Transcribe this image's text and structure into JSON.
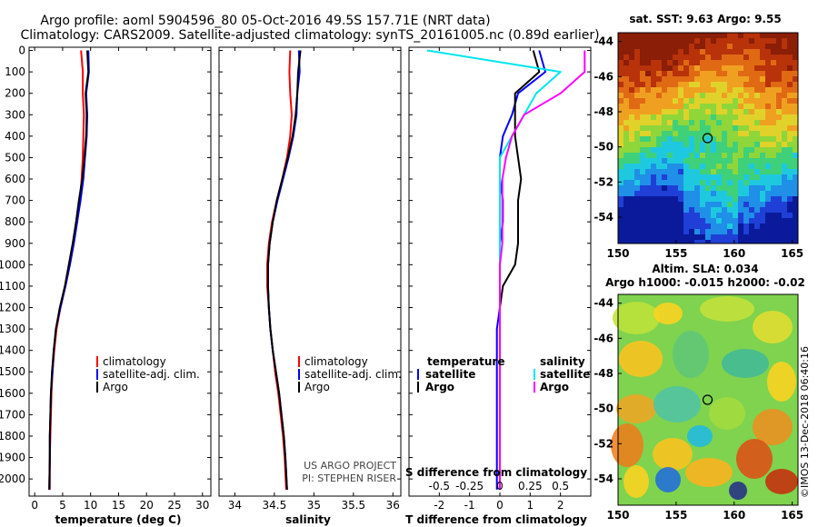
{
  "header": {
    "line1": "Argo profile: aoml 5904596_80 05-Oct-2016 49.5S 157.71E (NRT data)",
    "line2": "Climatology: CARS2009. Satellite-adjusted climatology: synTS_20161005.nc (0.89d earlier)"
  },
  "colors": {
    "climatology": "#ff0000",
    "satellite": "#0000ff",
    "argo": "#000000",
    "sat_salinity": "#00e5ee",
    "clim_salinity": "#ff00ff"
  },
  "depth_ticks": [
    "0",
    "100",
    "200",
    "300",
    "400",
    "500",
    "600",
    "700",
    "800",
    "900",
    "1000",
    "1100",
    "1200",
    "1300",
    "1400",
    "1500",
    "1600",
    "1700",
    "1800",
    "1900",
    "2000"
  ],
  "chart_data": [
    {
      "type": "line",
      "name": "temperature-panel",
      "xlabel": "temperature (deg C)",
      "xlim": [
        -1,
        31.5
      ],
      "ylim": [
        2080,
        -15
      ],
      "xticks": [
        0,
        5,
        10,
        15,
        20,
        25,
        30
      ],
      "xtick_labels": [
        "0",
        "5",
        "10",
        "15",
        "20",
        "25",
        "30"
      ],
      "legend": [
        "climatology",
        "satellite-adj. clim.",
        "Argo"
      ],
      "series": [
        {
          "name": "climatology",
          "color": "#ff0000",
          "x": [
            8.3,
            8.6,
            8.6,
            8.8,
            8.7,
            8.6,
            8.4,
            8.1,
            7.6,
            7.0,
            6.3,
            5.5,
            4.6,
            3.9,
            3.5,
            3.2,
            3.0,
            2.9,
            2.8,
            2.7,
            2.7
          ],
          "y": [
            0,
            100,
            200,
            300,
            400,
            500,
            600,
            700,
            800,
            900,
            1000,
            1100,
            1200,
            1300,
            1400,
            1500,
            1600,
            1700,
            1800,
            1900,
            2050
          ]
        },
        {
          "name": "satellite-adj. clim.",
          "color": "#0000ff",
          "x": [
            9.6,
            9.7,
            9.2,
            9.4,
            9.3,
            9.0,
            8.7,
            8.2,
            7.6,
            7.0,
            6.3,
            5.5,
            4.6,
            3.8,
            3.4,
            3.2,
            2.9,
            2.8,
            2.7,
            2.7,
            2.6
          ],
          "y": [
            0,
            100,
            200,
            300,
            400,
            500,
            600,
            700,
            800,
            900,
            1000,
            1100,
            1200,
            1300,
            1400,
            1500,
            1600,
            1700,
            1800,
            1900,
            2050
          ]
        },
        {
          "name": "Argo",
          "color": "#000000",
          "x": [
            9.4,
            9.6,
            9.1,
            9.3,
            9.2,
            8.9,
            8.5,
            7.9,
            7.4,
            6.8,
            6.1,
            5.4,
            4.5,
            3.8,
            3.4,
            3.1,
            2.9,
            2.8,
            2.7,
            2.7,
            2.6
          ],
          "y": [
            0,
            100,
            200,
            300,
            400,
            500,
            600,
            700,
            800,
            900,
            1000,
            1100,
            1200,
            1300,
            1400,
            1500,
            1600,
            1700,
            1800,
            1900,
            2050
          ]
        }
      ]
    },
    {
      "type": "line",
      "name": "salinity-panel",
      "xlabel": "salinity",
      "xlim": [
        33.8,
        36.1
      ],
      "ylim": [
        2080,
        -15
      ],
      "xticks": [
        34,
        34.5,
        35,
        35.5,
        36
      ],
      "xtick_labels": [
        "34",
        "34.5",
        "35",
        "35.5",
        "36"
      ],
      "legend": [
        "climatology",
        "satellite-adj. clim.",
        "Argo"
      ],
      "notes": [
        "US ARGO PROJECT",
        "PI: STEPHEN RISER"
      ],
      "series": [
        {
          "name": "climatology",
          "color": "#ff0000",
          "x": [
            34.7,
            34.69,
            34.7,
            34.72,
            34.7,
            34.66,
            34.6,
            34.53,
            34.47,
            34.43,
            34.41,
            34.41,
            34.43,
            34.45,
            34.48,
            34.51,
            34.55,
            34.58,
            34.61,
            34.63,
            34.65
          ],
          "y": [
            0,
            100,
            200,
            300,
            400,
            500,
            600,
            700,
            800,
            900,
            1000,
            1100,
            1200,
            1300,
            1400,
            1500,
            1600,
            1700,
            1800,
            1900,
            2050
          ]
        },
        {
          "name": "satellite-adj. clim.",
          "color": "#0000ff",
          "x": [
            34.81,
            34.82,
            34.79,
            34.78,
            34.74,
            34.68,
            34.61,
            34.54,
            34.48,
            34.44,
            34.42,
            34.42,
            34.43,
            34.45,
            34.48,
            34.52,
            34.56,
            34.59,
            34.62,
            34.64,
            34.66
          ],
          "y": [
            0,
            100,
            200,
            300,
            400,
            500,
            600,
            700,
            800,
            900,
            1000,
            1100,
            1200,
            1300,
            1400,
            1500,
            1600,
            1700,
            1800,
            1900,
            2050
          ]
        },
        {
          "name": "Argo",
          "color": "#000000",
          "x": [
            34.83,
            34.8,
            34.79,
            34.77,
            34.73,
            34.67,
            34.6,
            34.53,
            34.48,
            34.44,
            34.42,
            34.42,
            34.43,
            34.45,
            34.48,
            34.52,
            34.56,
            34.59,
            34.62,
            34.64,
            34.66
          ],
          "y": [
            0,
            100,
            200,
            300,
            400,
            500,
            600,
            700,
            800,
            900,
            1000,
            1100,
            1200,
            1300,
            1400,
            1500,
            1600,
            1700,
            1800,
            1900,
            2050
          ]
        }
      ]
    },
    {
      "type": "line",
      "name": "difference-panel",
      "xlabel": "T difference from climatology",
      "xlabel_top": "S difference from climatology",
      "xlim": [
        -3,
        3
      ],
      "ylim": [
        2080,
        -15
      ],
      "xticks": [
        -2,
        -1,
        0,
        1,
        2
      ],
      "xtick_labels": [
        "-2",
        "-1",
        "0",
        "1",
        "2"
      ],
      "s_axis_scale": 4,
      "s_ticks": [
        -0.5,
        -0.25,
        0,
        0.25,
        0.5
      ],
      "s_tick_labels": [
        "-0.5",
        "-0.25",
        "0",
        "0.25",
        "0.5"
      ],
      "legend_temperature": {
        "title": "temperature",
        "items": [
          "satellite",
          "Argo"
        ]
      },
      "legend_salinity": {
        "title": "salinity",
        "items": [
          "satellite",
          "Argo"
        ]
      },
      "series": [
        {
          "name": "T satellite",
          "color": "#0000ff",
          "x": [
            1.3,
            1.5,
            0.6,
            0.4,
            0.1,
            0.0,
            0.0,
            0.1,
            0.1,
            0.0,
            0.0,
            0.0,
            0.0,
            -0.1,
            -0.1,
            -0.1,
            -0.1,
            -0.1,
            -0.1,
            -0.1,
            -0.1
          ],
          "y": [
            0,
            100,
            200,
            300,
            400,
            500,
            600,
            700,
            800,
            900,
            1000,
            1100,
            1200,
            1300,
            1400,
            1500,
            1600,
            1700,
            1800,
            1900,
            2050
          ]
        },
        {
          "name": "T Argo",
          "color": "#000000",
          "x": [
            1.1,
            1.3,
            0.5,
            0.5,
            0.5,
            0.6,
            0.7,
            0.6,
            0.6,
            0.6,
            0.5,
            0.1,
            0.0,
            0.0,
            0.0,
            0.0,
            0.0,
            0.0,
            0.0,
            0.0,
            0.0
          ],
          "y": [
            0,
            100,
            200,
            300,
            400,
            500,
            600,
            700,
            800,
            900,
            1000,
            1100,
            1200,
            1300,
            1400,
            1500,
            1600,
            1700,
            1800,
            1900,
            2050
          ]
        },
        {
          "name": "S satellite",
          "color": "#00e5ee",
          "x": [
            -0.6,
            0.5,
            0.3,
            0.2,
            0.1,
            0.0,
            0.0,
            0.0,
            0.0,
            0.0,
            0.0,
            0.0,
            0.0,
            0.0,
            0.0,
            0.0,
            0.0,
            0.0,
            0.0,
            0.0,
            0.0
          ],
          "y": [
            0,
            100,
            200,
            300,
            400,
            500,
            600,
            700,
            800,
            900,
            1000,
            1100,
            1200,
            1300,
            1400,
            1500,
            1600,
            1700,
            1800,
            1900,
            2050
          ]
        },
        {
          "name": "S Argo",
          "color": "#ff00ff",
          "x": [
            0.7,
            0.7,
            0.5,
            0.2,
            0.1,
            0.05,
            0.02,
            0.02,
            0.02,
            0.02,
            0.0,
            0.0,
            0.0,
            0.0,
            0.0,
            0.0,
            0.0,
            0.0,
            0.0,
            0.0,
            0.0
          ],
          "y": [
            0,
            100,
            200,
            300,
            400,
            500,
            600,
            700,
            800,
            900,
            1000,
            1100,
            1200,
            1300,
            1400,
            1500,
            1600,
            1700,
            1800,
            1900,
            2050
          ]
        }
      ]
    },
    {
      "type": "heatmap",
      "name": "sst-map",
      "title": "sat. SST: 9.63 Argo: 9.55",
      "xlim": [
        150,
        165.5
      ],
      "ylim": [
        -55.5,
        -43.5
      ],
      "xticks": [
        150,
        155,
        160,
        165
      ],
      "xtick_labels": [
        "150",
        "155",
        "160",
        "165"
      ],
      "yticks": [
        -44,
        -46,
        -48,
        -50,
        -52,
        -54
      ],
      "ytick_labels": [
        "-44",
        "-46",
        "-48",
        "-50",
        "-52",
        "-54"
      ],
      "marker": {
        "lon": 157.71,
        "lat": -49.5
      },
      "palette": [
        "#0a1a9a",
        "#1f3fd6",
        "#1f8fe8",
        "#1ec9e0",
        "#3fd07a",
        "#8fd63a",
        "#e0d22a",
        "#f0a020",
        "#e06a14",
        "#b8320a",
        "#8a1e06"
      ]
    },
    {
      "type": "heatmap",
      "name": "sla-map",
      "title": "Altim. SLA: 0.034",
      "subtitle": "Argo h1000: -0.015 h2000: -0.02",
      "xlim": [
        150,
        165.5
      ],
      "ylim": [
        -55.5,
        -43.5
      ],
      "xticks": [
        150,
        155,
        160,
        165
      ],
      "xtick_labels": [
        "150",
        "155",
        "160",
        "165"
      ],
      "yticks": [
        -44,
        -46,
        -48,
        -50,
        -52,
        -54
      ],
      "ytick_labels": [
        "-44",
        "-46",
        "-48",
        "-50",
        "-52",
        "-54"
      ],
      "marker": {
        "lon": 157.71,
        "lat": -49.5
      },
      "side_label": "©IMOS 13-Dec-2018 06:40:16"
    }
  ]
}
